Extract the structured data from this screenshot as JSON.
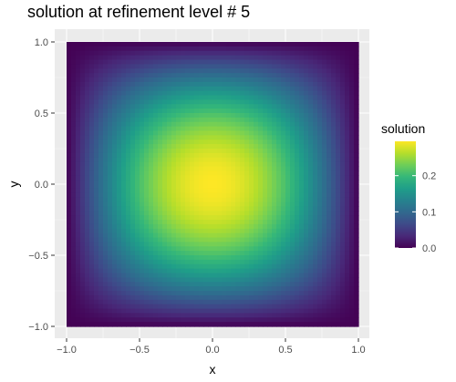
{
  "chart_data": {
    "type": "heatmap",
    "title": "solution at refinement level # 5",
    "xlabel": "x",
    "ylabel": "y",
    "xlim": [
      -1.0,
      1.0
    ],
    "ylim": [
      -1.0,
      1.0
    ],
    "x_ticks": [
      -1.0,
      -0.5,
      0.0,
      0.5,
      1.0
    ],
    "x_tick_labels": [
      "−1.0",
      "−0.5",
      "0.0",
      "0.5",
      "1.0"
    ],
    "y_ticks": [
      -1.0,
      -0.5,
      0.0,
      0.5,
      1.0
    ],
    "y_tick_labels": [
      "−1.0",
      "−0.5",
      "0.0",
      "0.5",
      "1.0"
    ],
    "grid": true,
    "fill_variable": "solution",
    "fill_range": [
      0.0,
      0.295
    ],
    "peak": {
      "x": 0.0,
      "y": 0.0,
      "value": 0.295
    },
    "colormap": "viridis",
    "colormap_stops": [
      "#440154",
      "#482878",
      "#3e4a89",
      "#31688e",
      "#26828e",
      "#1f9e89",
      "#35b779",
      "#6ece58",
      "#b5de2b",
      "#fde725"
    ],
    "legend": {
      "title": "solution",
      "placement": "right",
      "ticks": [
        0.0,
        0.1,
        0.2
      ],
      "tick_labels": [
        "0.0",
        "0.1",
        "0.2"
      ]
    }
  }
}
